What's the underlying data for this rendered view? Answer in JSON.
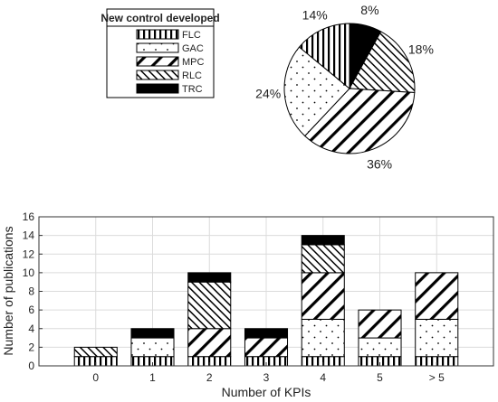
{
  "chart_data": [
    {
      "type": "pie",
      "legend_title": "New control developed",
      "legend_position": "top-left",
      "labels": [
        "FLC",
        "GAC",
        "MPC",
        "RLC",
        "TRC"
      ],
      "values": [
        14,
        24,
        36,
        18,
        8
      ],
      "value_labels": [
        "14%",
        "24%",
        "36%",
        "18%",
        "8%"
      ]
    },
    {
      "type": "bar",
      "stacked": true,
      "categories": [
        "0",
        "1",
        "2",
        "3",
        "4",
        "5",
        "> 5"
      ],
      "series": [
        {
          "name": "FLC",
          "values": [
            1,
            1,
            1,
            1,
            1,
            1,
            1
          ]
        },
        {
          "name": "GAC",
          "values": [
            0,
            2,
            0,
            0,
            4,
            2,
            4
          ]
        },
        {
          "name": "MPC",
          "values": [
            0,
            0,
            3,
            2,
            5,
            3,
            5
          ]
        },
        {
          "name": "RLC",
          "values": [
            1,
            0,
            5,
            0,
            3,
            0,
            0
          ]
        },
        {
          "name": "TRC",
          "values": [
            0,
            1,
            1,
            1,
            1,
            0,
            0
          ]
        }
      ],
      "xlabel": "Number of KPIs",
      "ylabel": "Number of publications",
      "ylim": [
        0,
        16
      ],
      "yticks": [
        "0",
        "2",
        "4",
        "6",
        "8",
        "10",
        "12",
        "14",
        "16"
      ],
      "grid": true
    }
  ],
  "pattern_keys": [
    "vertical-lines",
    "dots",
    "diagonal-wide",
    "diagonal-dense",
    "solid-black"
  ]
}
